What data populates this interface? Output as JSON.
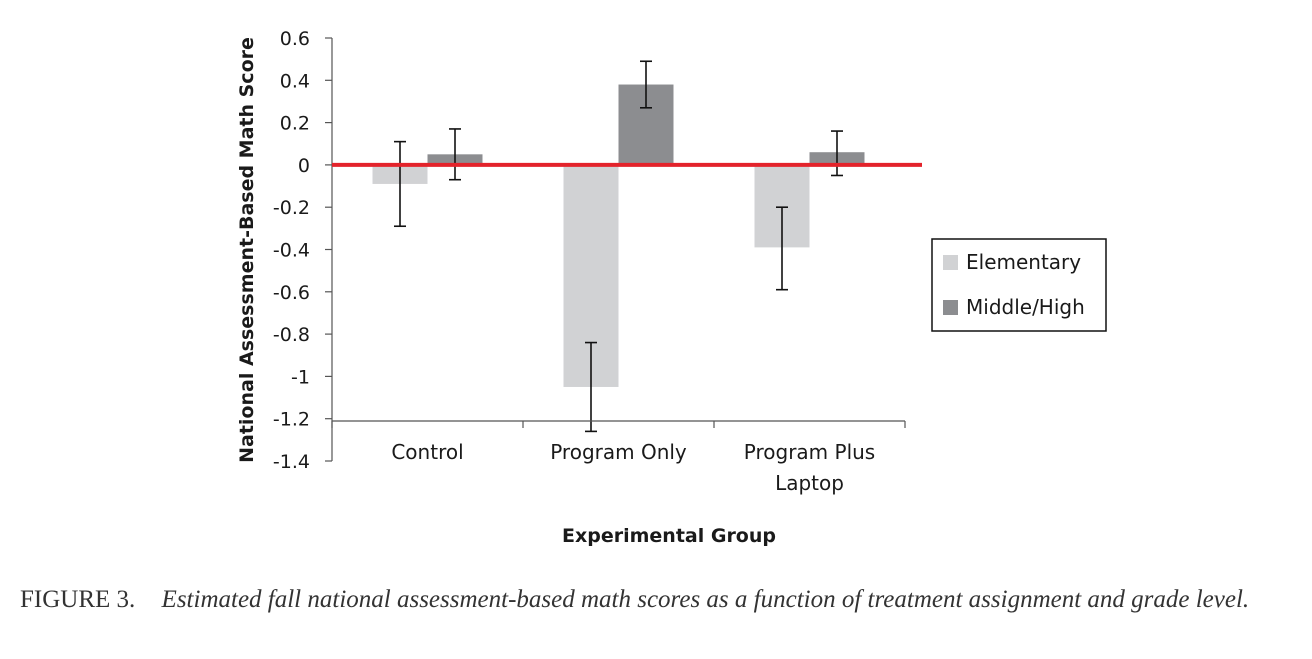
{
  "chart_data": {
    "type": "bar",
    "categories": [
      [
        "Control"
      ],
      [
        "Program Only"
      ],
      [
        "Program Plus",
        "Laptop"
      ]
    ],
    "series": [
      {
        "name": "Elementary",
        "values": [
          -0.09,
          -1.05,
          -0.39
        ],
        "err_low": [
          -0.29,
          -1.26,
          -0.59
        ],
        "err_high": [
          0.11,
          -0.84,
          -0.2
        ],
        "color": "#d1d2d4"
      },
      {
        "name": "Middle/High",
        "values": [
          0.05,
          0.38,
          0.06
        ],
        "err_low": [
          -0.07,
          0.27,
          -0.05
        ],
        "err_high": [
          0.17,
          0.49,
          0.16
        ],
        "color": "#8c8d90"
      }
    ],
    "ylim": [
      -1.4,
      0.6
    ],
    "yticks": [
      "0.6",
      "0.4",
      "0.2",
      "0",
      "-0.2",
      "-0.4",
      "-0.6",
      "-0.8",
      "-1",
      "-1.2",
      "-1.4"
    ],
    "ylabel": "National Assessment-Based Math Score",
    "xlabel": "Experimental Group",
    "reference_line": {
      "value": 0,
      "color": "#e3232b"
    },
    "legend_position": "right"
  },
  "caption": {
    "figure_label": "FIGURE 3.",
    "text": "Estimated fall national assessment-based math scores as a function of treatment assignment and grade level."
  }
}
